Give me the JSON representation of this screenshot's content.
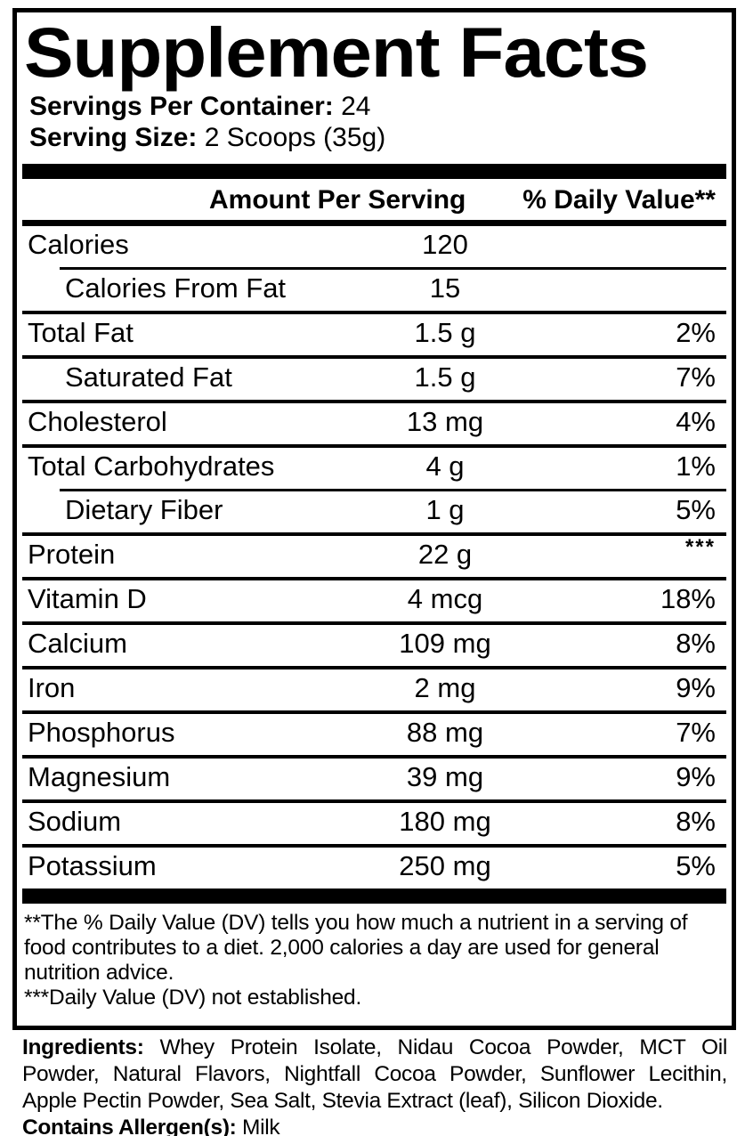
{
  "colors": {
    "ink": "#000000",
    "paper": "#ffffff"
  },
  "panel": {
    "title": "Supplement Facts",
    "servings_per_container_label": "Servings Per Container:",
    "servings_per_container_value": "24",
    "serving_size_label": "Serving Size:",
    "serving_size_value": "2 Scoops (35g)",
    "columns": {
      "amount_header": "Amount Per Serving",
      "daily_value_header": "% Daily Value**"
    },
    "rows": [
      {
        "name": "Calories",
        "amount": "120",
        "daily_value": "",
        "indent": false,
        "separator_above": "none"
      },
      {
        "name": "Calories From Fat",
        "amount": "15",
        "daily_value": "",
        "indent": true,
        "separator_above": "thin-indented"
      },
      {
        "name": "Total Fat",
        "amount": "1.5 g",
        "daily_value": "2%",
        "indent": false,
        "separator_above": "full"
      },
      {
        "name": "Saturated Fat",
        "amount": "1.5 g",
        "daily_value": "7%",
        "indent": true,
        "separator_above": "full"
      },
      {
        "name": "Cholesterol",
        "amount": "13 mg",
        "daily_value": "4%",
        "indent": false,
        "separator_above": "full"
      },
      {
        "name": "Total Carbohydrates",
        "amount": "4 g",
        "daily_value": "1%",
        "indent": false,
        "separator_above": "full"
      },
      {
        "name": "Dietary Fiber",
        "amount": "1 g",
        "daily_value": "5%",
        "indent": true,
        "separator_above": "thin-indented"
      },
      {
        "name": "Protein",
        "amount": "22 g",
        "daily_value": "***",
        "daily_value_superscript": true,
        "indent": false,
        "separator_above": "full"
      },
      {
        "name": "Vitamin D",
        "amount": "4 mcg",
        "daily_value": "18%",
        "indent": false,
        "separator_above": "full"
      },
      {
        "name": "Calcium",
        "amount": "109 mg",
        "daily_value": "8%",
        "indent": false,
        "separator_above": "full"
      },
      {
        "name": "Iron",
        "amount": "2 mg",
        "daily_value": "9%",
        "indent": false,
        "separator_above": "full"
      },
      {
        "name": "Phosphorus",
        "amount": "88 mg",
        "daily_value": "7%",
        "indent": false,
        "separator_above": "full"
      },
      {
        "name": "Magnesium",
        "amount": "39 mg",
        "daily_value": "9%",
        "indent": false,
        "separator_above": "full"
      },
      {
        "name": "Sodium",
        "amount": "180 mg",
        "daily_value": "8%",
        "indent": false,
        "separator_above": "full"
      },
      {
        "name": "Potassium",
        "amount": "250 mg",
        "daily_value": "5%",
        "indent": false,
        "separator_above": "full"
      }
    ],
    "footnotes": {
      "daily_value_note": "**The % Daily Value (DV) tells you how much a nutrient in a serving of food contributes to a diet. 2,000 calories a day are used for general nutrition advice.",
      "not_established_note": "***Daily Value (DV) not established."
    }
  },
  "ingredients": {
    "label": "Ingredients:",
    "text": " Whey Protein Isolate, Nidau Cocoa Powder, MCT Oil Powder, Natural Flavors, Nightfall Cocoa Powder, Sunflower Lecithin, Apple Pectin Powder, Sea Salt, Stevia Extract (leaf), Silicon Dioxide."
  },
  "allergens": {
    "label": "Contains Allergen(s):",
    "value": " Milk"
  }
}
